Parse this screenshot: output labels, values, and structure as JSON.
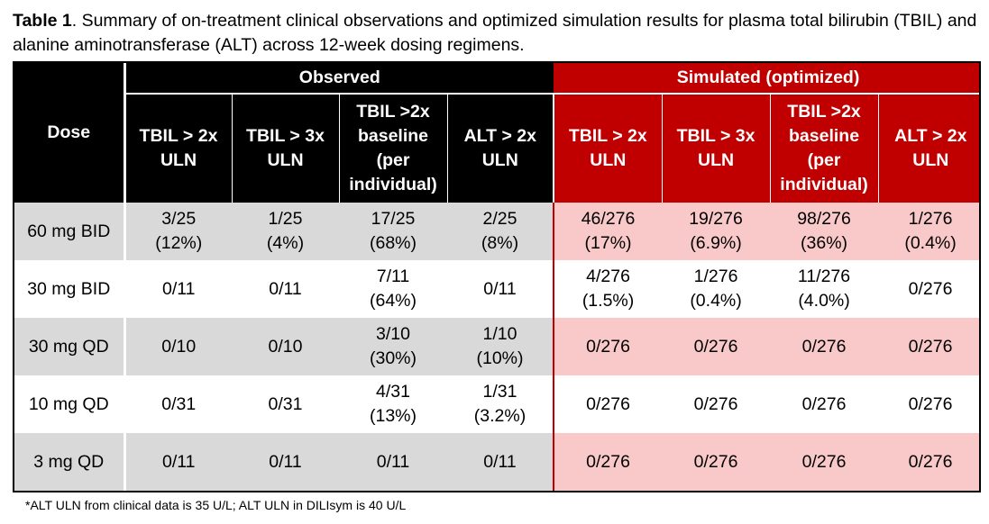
{
  "caption": {
    "label": "Table 1",
    "text": ". Summary of on-treatment clinical observations and optimized simulation results for plasma total bilirubin (TBIL) and alanine aminotransferase (ALT) across 12-week dosing regimens."
  },
  "table": {
    "dose_header": "Dose",
    "group_observed": "Observed",
    "group_simulated": "Simulated (optimized)",
    "columns": [
      "TBIL > 2x ULN",
      "TBIL > 3x ULN",
      "TBIL >2x baseline (per individual)",
      "ALT > 2x ULN"
    ],
    "rows": [
      {
        "dose": "60 mg BID",
        "observed": [
          "3/25 (12%)",
          "1/25 (4%)",
          "17/25 (68%)",
          "2/25 (8%)"
        ],
        "simulated": [
          "46/276 (17%)",
          "19/276 (6.9%)",
          "98/276 (36%)",
          "1/276 (0.4%)"
        ]
      },
      {
        "dose": "30 mg BID",
        "observed": [
          "0/11",
          "0/11",
          "7/11 (64%)",
          "0/11"
        ],
        "simulated": [
          "4/276 (1.5%)",
          "1/276 (0.4%)",
          "11/276 (4.0%)",
          "0/276"
        ]
      },
      {
        "dose": "30 mg QD",
        "observed": [
          "0/10",
          "0/10",
          "3/10 (30%)",
          "1/10 (10%)"
        ],
        "simulated": [
          "0/276",
          "0/276",
          "0/276",
          "0/276"
        ]
      },
      {
        "dose": "10 mg QD",
        "observed": [
          "0/31",
          "0/31",
          "4/31 (13%)",
          "1/31 (3.2%)"
        ],
        "simulated": [
          "0/276",
          "0/276",
          "0/276",
          "0/276"
        ]
      },
      {
        "dose": "3 mg QD",
        "observed": [
          "0/11",
          "0/11",
          "0/11",
          "0/11"
        ],
        "simulated": [
          "0/276",
          "0/276",
          "0/276",
          "0/276"
        ]
      }
    ]
  },
  "footnote": "*ALT ULN from clinical data is 35 U/L; ALT ULN in DILIsym is 40 U/L",
  "colors": {
    "header_black": "#000000",
    "header_red": "#c00000",
    "row_gray": "#d9d9d9",
    "row_pink": "#f9c9c9"
  }
}
